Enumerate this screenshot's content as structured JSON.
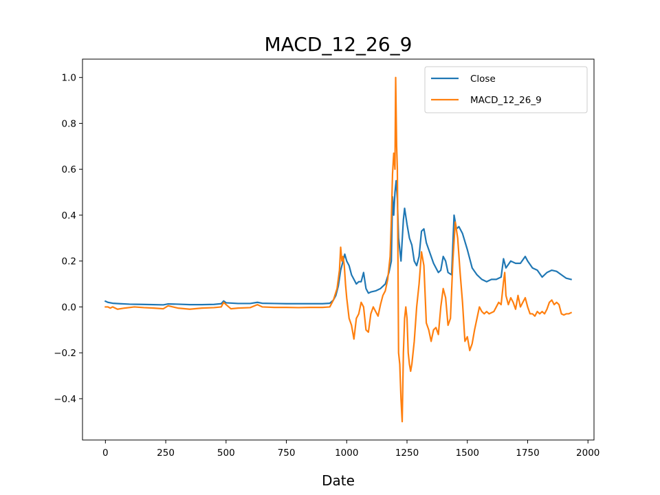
{
  "chart_data": {
    "type": "line",
    "title": "MACD_12_26_9",
    "xlabel": "Date",
    "ylabel": "",
    "xlim": [
      -95,
      2025
    ],
    "ylim": [
      -0.58,
      1.08
    ],
    "xticks": [
      0,
      250,
      500,
      750,
      1000,
      1250,
      1500,
      1750,
      2000
    ],
    "yticks": [
      -0.4,
      -0.2,
      0.0,
      0.2,
      0.4,
      0.6,
      0.8,
      1.0
    ],
    "xtick_labels": [
      "0",
      "250",
      "500",
      "750",
      "1000",
      "1250",
      "1500",
      "1750",
      "2000"
    ],
    "ytick_labels": [
      "−0.4",
      "−0.2",
      "0.0",
      "0.2",
      "0.4",
      "0.6",
      "0.8",
      "1.0"
    ],
    "grid": false,
    "legend_position": "top-right",
    "series": [
      {
        "name": "Close",
        "color": "#1f77b4",
        "points": [
          [
            0,
            0.025
          ],
          [
            10,
            0.02
          ],
          [
            30,
            0.016
          ],
          [
            60,
            0.014
          ],
          [
            100,
            0.012
          ],
          [
            150,
            0.011
          ],
          [
            200,
            0.01
          ],
          [
            240,
            0.009
          ],
          [
            260,
            0.013
          ],
          [
            300,
            0.012
          ],
          [
            350,
            0.01
          ],
          [
            400,
            0.01
          ],
          [
            450,
            0.011
          ],
          [
            480,
            0.014
          ],
          [
            490,
            0.026
          ],
          [
            500,
            0.018
          ],
          [
            550,
            0.015
          ],
          [
            600,
            0.015
          ],
          [
            630,
            0.02
          ],
          [
            650,
            0.016
          ],
          [
            700,
            0.015
          ],
          [
            750,
            0.014
          ],
          [
            800,
            0.014
          ],
          [
            850,
            0.014
          ],
          [
            900,
            0.014
          ],
          [
            930,
            0.016
          ],
          [
            945,
            0.03
          ],
          [
            955,
            0.05
          ],
          [
            965,
            0.09
          ],
          [
            975,
            0.16
          ],
          [
            985,
            0.2
          ],
          [
            992,
            0.23
          ],
          [
            1000,
            0.2
          ],
          [
            1010,
            0.18
          ],
          [
            1020,
            0.14
          ],
          [
            1030,
            0.12
          ],
          [
            1040,
            0.1
          ],
          [
            1050,
            0.11
          ],
          [
            1060,
            0.11
          ],
          [
            1070,
            0.15
          ],
          [
            1080,
            0.08
          ],
          [
            1090,
            0.06
          ],
          [
            1100,
            0.065
          ],
          [
            1120,
            0.07
          ],
          [
            1140,
            0.08
          ],
          [
            1160,
            0.1
          ],
          [
            1175,
            0.15
          ],
          [
            1185,
            0.2
          ],
          [
            1190,
            0.48
          ],
          [
            1195,
            0.4
          ],
          [
            1200,
            0.5
          ],
          [
            1205,
            0.55
          ],
          [
            1210,
            0.47
          ],
          [
            1215,
            0.3
          ],
          [
            1225,
            0.2
          ],
          [
            1235,
            0.38
          ],
          [
            1240,
            0.43
          ],
          [
            1250,
            0.36
          ],
          [
            1260,
            0.3
          ],
          [
            1270,
            0.27
          ],
          [
            1280,
            0.2
          ],
          [
            1290,
            0.18
          ],
          [
            1300,
            0.22
          ],
          [
            1310,
            0.33
          ],
          [
            1320,
            0.34
          ],
          [
            1330,
            0.28
          ],
          [
            1340,
            0.25
          ],
          [
            1350,
            0.22
          ],
          [
            1360,
            0.19
          ],
          [
            1370,
            0.17
          ],
          [
            1380,
            0.15
          ],
          [
            1390,
            0.16
          ],
          [
            1400,
            0.22
          ],
          [
            1410,
            0.2
          ],
          [
            1420,
            0.15
          ],
          [
            1435,
            0.14
          ],
          [
            1445,
            0.4
          ],
          [
            1455,
            0.34
          ],
          [
            1465,
            0.35
          ],
          [
            1480,
            0.32
          ],
          [
            1500,
            0.25
          ],
          [
            1520,
            0.17
          ],
          [
            1540,
            0.14
          ],
          [
            1560,
            0.12
          ],
          [
            1580,
            0.11
          ],
          [
            1600,
            0.12
          ],
          [
            1620,
            0.12
          ],
          [
            1640,
            0.13
          ],
          [
            1650,
            0.21
          ],
          [
            1660,
            0.17
          ],
          [
            1680,
            0.2
          ],
          [
            1700,
            0.19
          ],
          [
            1720,
            0.19
          ],
          [
            1740,
            0.22
          ],
          [
            1750,
            0.2
          ],
          [
            1770,
            0.17
          ],
          [
            1790,
            0.16
          ],
          [
            1810,
            0.13
          ],
          [
            1830,
            0.15
          ],
          [
            1850,
            0.16
          ],
          [
            1870,
            0.155
          ],
          [
            1890,
            0.14
          ],
          [
            1910,
            0.125
          ],
          [
            1930,
            0.12
          ]
        ]
      },
      {
        "name": "MACD_12_26_9",
        "color": "#ff7f0e",
        "points": [
          [
            0,
            0.0
          ],
          [
            10,
            0.0
          ],
          [
            20,
            -0.005
          ],
          [
            30,
            0.0
          ],
          [
            50,
            -0.01
          ],
          [
            80,
            -0.005
          ],
          [
            120,
            0.0
          ],
          [
            160,
            -0.003
          ],
          [
            200,
            -0.005
          ],
          [
            240,
            -0.008
          ],
          [
            260,
            0.005
          ],
          [
            300,
            -0.005
          ],
          [
            350,
            -0.01
          ],
          [
            400,
            -0.005
          ],
          [
            450,
            -0.003
          ],
          [
            480,
            0.0
          ],
          [
            490,
            0.02
          ],
          [
            500,
            0.01
          ],
          [
            520,
            -0.008
          ],
          [
            550,
            -0.005
          ],
          [
            600,
            -0.003
          ],
          [
            630,
            0.01
          ],
          [
            650,
            0.0
          ],
          [
            700,
            -0.002
          ],
          [
            750,
            -0.002
          ],
          [
            800,
            -0.003
          ],
          [
            850,
            -0.002
          ],
          [
            900,
            -0.002
          ],
          [
            930,
            0.0
          ],
          [
            945,
            0.03
          ],
          [
            960,
            0.08
          ],
          [
            970,
            0.16
          ],
          [
            975,
            0.26
          ],
          [
            980,
            0.2
          ],
          [
            985,
            0.22
          ],
          [
            990,
            0.18
          ],
          [
            995,
            0.1
          ],
          [
            1000,
            0.04
          ],
          [
            1010,
            -0.05
          ],
          [
            1020,
            -0.08
          ],
          [
            1030,
            -0.14
          ],
          [
            1040,
            -0.05
          ],
          [
            1050,
            -0.03
          ],
          [
            1060,
            0.02
          ],
          [
            1070,
            0.0
          ],
          [
            1080,
            -0.1
          ],
          [
            1090,
            -0.11
          ],
          [
            1100,
            -0.03
          ],
          [
            1110,
            0.0
          ],
          [
            1120,
            -0.02
          ],
          [
            1130,
            -0.04
          ],
          [
            1140,
            0.01
          ],
          [
            1150,
            0.05
          ],
          [
            1160,
            0.07
          ],
          [
            1170,
            0.12
          ],
          [
            1180,
            0.22
          ],
          [
            1185,
            0.38
          ],
          [
            1190,
            0.58
          ],
          [
            1195,
            0.67
          ],
          [
            1200,
            0.6
          ],
          [
            1203,
            1.0
          ],
          [
            1207,
            0.7
          ],
          [
            1210,
            0.6
          ],
          [
            1215,
            -0.2
          ],
          [
            1220,
            -0.25
          ],
          [
            1225,
            -0.4
          ],
          [
            1230,
            -0.5
          ],
          [
            1235,
            -0.2
          ],
          [
            1240,
            -0.05
          ],
          [
            1245,
            0.0
          ],
          [
            1250,
            -0.05
          ],
          [
            1255,
            -0.2
          ],
          [
            1260,
            -0.25
          ],
          [
            1265,
            -0.28
          ],
          [
            1270,
            -0.25
          ],
          [
            1280,
            -0.15
          ],
          [
            1290,
            0.0
          ],
          [
            1300,
            0.1
          ],
          [
            1310,
            0.24
          ],
          [
            1320,
            0.18
          ],
          [
            1330,
            -0.07
          ],
          [
            1340,
            -0.1
          ],
          [
            1350,
            -0.15
          ],
          [
            1360,
            -0.1
          ],
          [
            1370,
            -0.09
          ],
          [
            1380,
            -0.12
          ],
          [
            1390,
            0.0
          ],
          [
            1400,
            0.08
          ],
          [
            1410,
            0.04
          ],
          [
            1420,
            -0.08
          ],
          [
            1430,
            -0.05
          ],
          [
            1440,
            0.2
          ],
          [
            1450,
            0.37
          ],
          [
            1460,
            0.3
          ],
          [
            1470,
            0.15
          ],
          [
            1480,
            0.02
          ],
          [
            1490,
            -0.15
          ],
          [
            1500,
            -0.13
          ],
          [
            1510,
            -0.19
          ],
          [
            1520,
            -0.16
          ],
          [
            1530,
            -0.1
          ],
          [
            1540,
            -0.05
          ],
          [
            1550,
            0.0
          ],
          [
            1560,
            -0.02
          ],
          [
            1570,
            -0.03
          ],
          [
            1580,
            -0.02
          ],
          [
            1590,
            -0.03
          ],
          [
            1610,
            -0.02
          ],
          [
            1620,
            0.0
          ],
          [
            1630,
            0.02
          ],
          [
            1640,
            0.01
          ],
          [
            1650,
            0.11
          ],
          [
            1655,
            0.15
          ],
          [
            1660,
            0.05
          ],
          [
            1670,
            0.01
          ],
          [
            1680,
            0.04
          ],
          [
            1690,
            0.02
          ],
          [
            1700,
            -0.01
          ],
          [
            1710,
            0.05
          ],
          [
            1720,
            0.0
          ],
          [
            1730,
            0.02
          ],
          [
            1740,
            0.04
          ],
          [
            1750,
            0.0
          ],
          [
            1760,
            -0.03
          ],
          [
            1770,
            -0.03
          ],
          [
            1780,
            -0.04
          ],
          [
            1790,
            -0.02
          ],
          [
            1800,
            -0.03
          ],
          [
            1810,
            -0.02
          ],
          [
            1820,
            -0.03
          ],
          [
            1830,
            -0.01
          ],
          [
            1840,
            0.02
          ],
          [
            1850,
            0.03
          ],
          [
            1860,
            0.01
          ],
          [
            1870,
            0.02
          ],
          [
            1880,
            0.01
          ],
          [
            1890,
            -0.03
          ],
          [
            1900,
            -0.035
          ],
          [
            1910,
            -0.03
          ],
          [
            1920,
            -0.03
          ],
          [
            1930,
            -0.025
          ]
        ]
      }
    ]
  }
}
